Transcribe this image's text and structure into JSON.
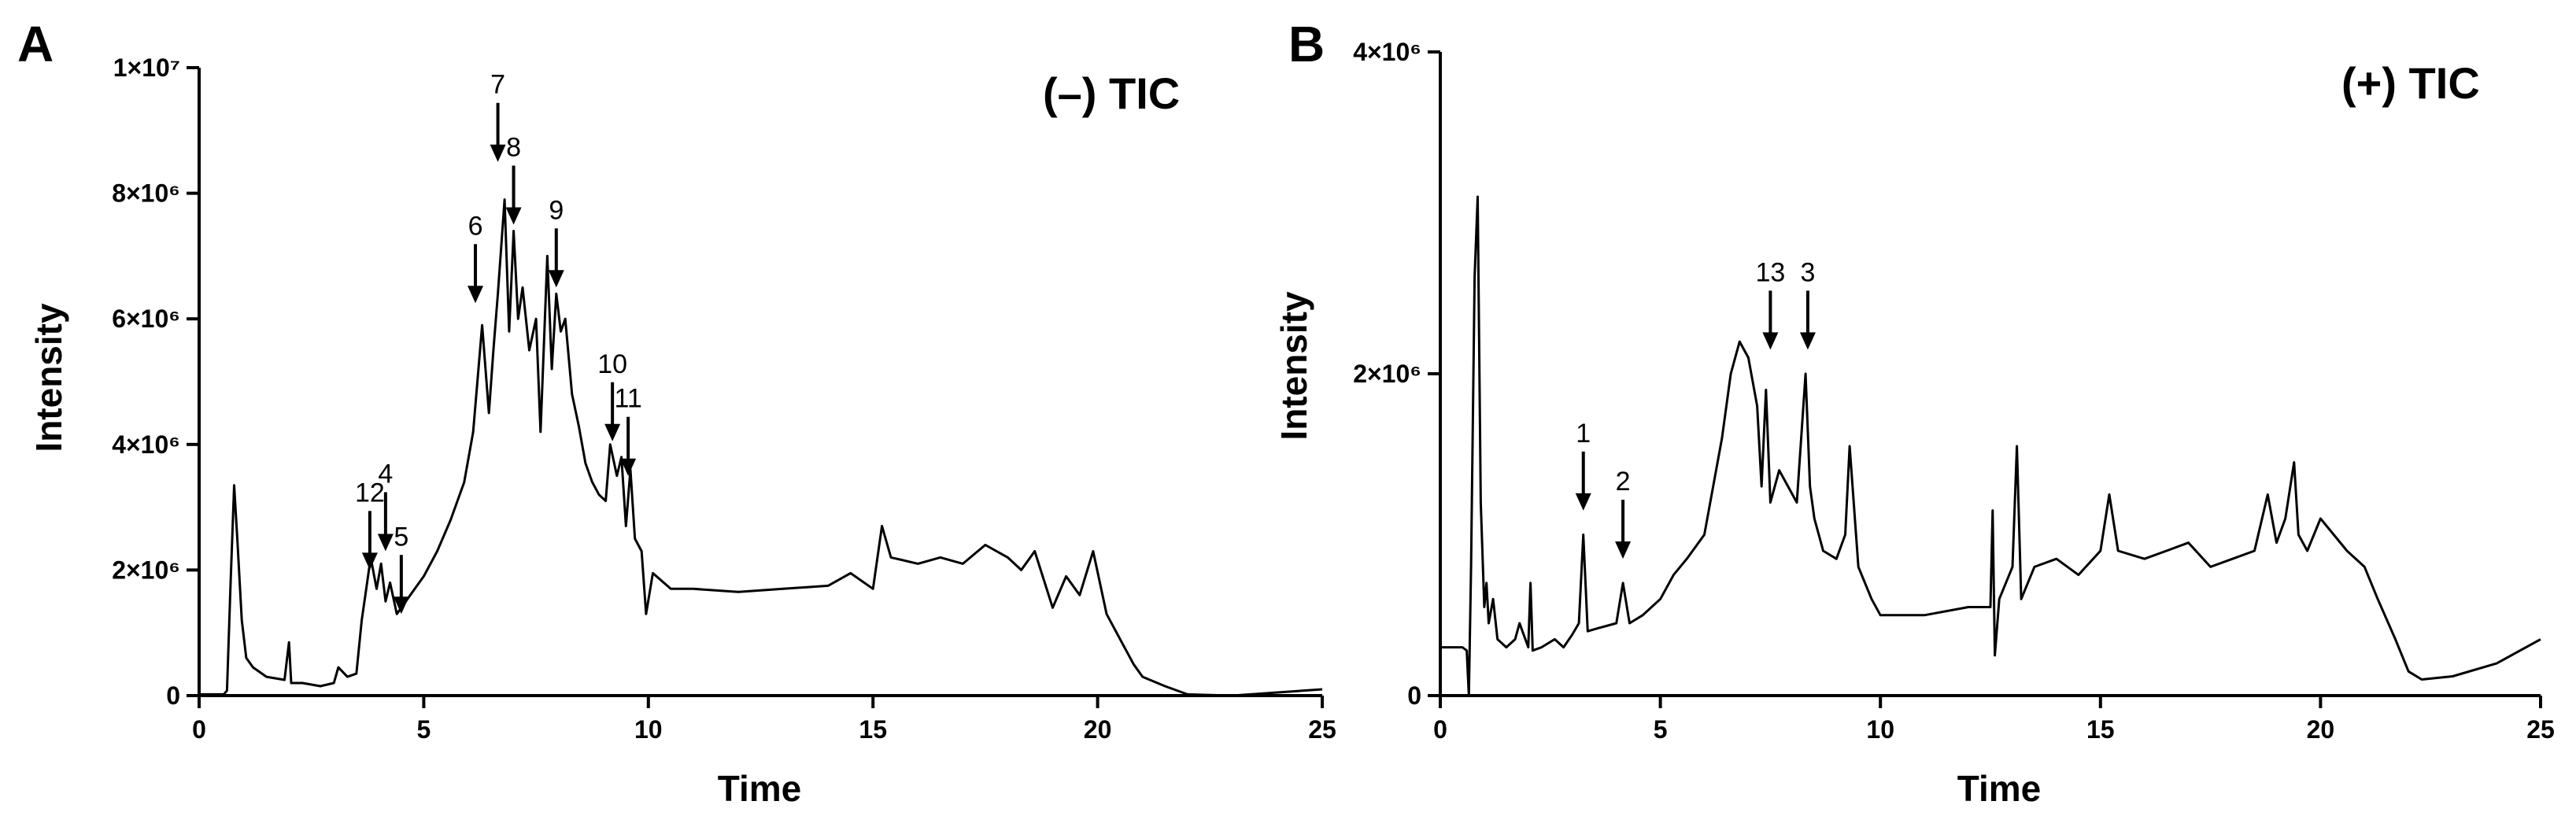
{
  "chart_data": [
    {
      "type": "line",
      "panel_label": "A",
      "title": "(–) TIC",
      "xlabel": "Time",
      "ylabel": "Intensity",
      "xlim": [
        0,
        25
      ],
      "ylim": [
        0,
        10000000
      ],
      "x_ticks": [
        0,
        5,
        10,
        15,
        20,
        25
      ],
      "x_tick_labels": [
        "0",
        "5",
        "10",
        "15",
        "20",
        "25"
      ],
      "y_ticks": [
        0,
        2000000,
        4000000,
        6000000,
        8000000,
        10000000
      ],
      "y_tick_labels": [
        "0",
        "2×10⁶",
        "4×10⁶",
        "6×10⁶",
        "8×10⁶",
        "1×10⁷"
      ],
      "grid": false,
      "line_color": "#000000",
      "series": [
        {
          "x": [
            0.0,
            0.55,
            0.62,
            0.7,
            0.78,
            0.85,
            0.95,
            1.05,
            1.2,
            1.5,
            1.9,
            2.0,
            2.05,
            2.3,
            2.7,
            3.0,
            3.1,
            3.3,
            3.5,
            3.62,
            3.7,
            3.82,
            3.95,
            4.05,
            4.15,
            4.25,
            4.4,
            4.5,
            4.6,
            4.8,
            5.0,
            5.3,
            5.6,
            5.9,
            6.1,
            6.3,
            6.45,
            6.55,
            6.65,
            6.8,
            6.9,
            7.0,
            7.1,
            7.2,
            7.35,
            7.5,
            7.6,
            7.75,
            7.85,
            7.95,
            8.05,
            8.15,
            8.3,
            8.45,
            8.6,
            8.75,
            8.9,
            9.05,
            9.15,
            9.3,
            9.4,
            9.5,
            9.6,
            9.7,
            9.85,
            9.95,
            10.1,
            10.5,
            11.0,
            12.0,
            13.0,
            14.0,
            14.5,
            15.0,
            15.2,
            15.4,
            16.0,
            16.5,
            17.0,
            17.5,
            18.0,
            18.3,
            18.6,
            19.0,
            19.3,
            19.6,
            19.9,
            20.2,
            20.5,
            20.8,
            21.0,
            21.5,
            22.0,
            23.0,
            24.0,
            25.0
          ],
          "y": [
            20000,
            20000,
            80000,
            1800000,
            3350000,
            2500000,
            1200000,
            600000,
            450000,
            300000,
            250000,
            850000,
            200000,
            200000,
            150000,
            200000,
            450000,
            300000,
            350000,
            1200000,
            1600000,
            2200000,
            1700000,
            2100000,
            1500000,
            1800000,
            1300000,
            1400000,
            1500000,
            1700000,
            1900000,
            2300000,
            2800000,
            3400000,
            4200000,
            5900000,
            4500000,
            5500000,
            6400000,
            7900000,
            5800000,
            7400000,
            6000000,
            6500000,
            5500000,
            6000000,
            4200000,
            7000000,
            5200000,
            6400000,
            5800000,
            6000000,
            4800000,
            4300000,
            3700000,
            3400000,
            3200000,
            3100000,
            4000000,
            3500000,
            3800000,
            2700000,
            3600000,
            2500000,
            2300000,
            1300000,
            1950000,
            1700000,
            1700000,
            1650000,
            1700000,
            1750000,
            1950000,
            1700000,
            2700000,
            2200000,
            2100000,
            2200000,
            2100000,
            2400000,
            2200000,
            2000000,
            2300000,
            1400000,
            1900000,
            1600000,
            2300000,
            1300000,
            900000,
            500000,
            300000,
            150000,
            20000,
            0,
            50000,
            100000
          ]
        }
      ],
      "annotations": [
        {
          "label": "12",
          "x": 3.8,
          "y": 2000000
        },
        {
          "label": "4",
          "x": 4.15,
          "y": 2300000
        },
        {
          "label": "5",
          "x": 4.5,
          "y": 1300000
        },
        {
          "label": "6",
          "x": 6.15,
          "y": 6250000
        },
        {
          "label": "7",
          "x": 6.65,
          "y": 8500000
        },
        {
          "label": "8",
          "x": 7.0,
          "y": 7500000
        },
        {
          "label": "9",
          "x": 7.95,
          "y": 6500000
        },
        {
          "label": "10",
          "x": 9.2,
          "y": 4050000
        },
        {
          "label": "11",
          "x": 9.55,
          "y": 3500000
        }
      ]
    },
    {
      "type": "line",
      "panel_label": "B",
      "title": "(+) TIC",
      "xlabel": "Time",
      "ylabel": "Intensity",
      "xlim": [
        0,
        25
      ],
      "ylim": [
        0,
        4000000
      ],
      "x_ticks": [
        0,
        5,
        10,
        15,
        20,
        25
      ],
      "x_tick_labels": [
        "0",
        "5",
        "10",
        "15",
        "20",
        "25"
      ],
      "y_ticks": [
        0,
        2000000,
        4000000
      ],
      "y_tick_labels": [
        "0",
        "2×10⁶",
        "4×10⁶"
      ],
      "grid": false,
      "line_color": "#000000",
      "series": [
        {
          "x": [
            0.0,
            0.5,
            0.6,
            0.65,
            0.7,
            0.78,
            0.85,
            0.92,
            1.0,
            1.05,
            1.1,
            1.2,
            1.3,
            1.5,
            1.7,
            1.8,
            2.0,
            2.05,
            2.1,
            2.3,
            2.6,
            2.8,
            3.0,
            3.15,
            3.25,
            3.35,
            3.6,
            4.0,
            4.15,
            4.3,
            4.6,
            5.0,
            5.3,
            5.6,
            6.0,
            6.2,
            6.4,
            6.6,
            6.8,
            7.0,
            7.2,
            7.3,
            7.4,
            7.5,
            7.7,
            7.9,
            8.1,
            8.3,
            8.4,
            8.5,
            8.7,
            9.0,
            9.2,
            9.3,
            9.5,
            9.8,
            10.0,
            11.0,
            12.0,
            12.5,
            12.55,
            12.6,
            12.7,
            13.0,
            13.1,
            13.2,
            13.5,
            14.0,
            14.5,
            15.0,
            15.2,
            15.4,
            16.0,
            16.5,
            17.0,
            17.5,
            18.0,
            18.5,
            18.8,
            19.0,
            19.2,
            19.4,
            19.5,
            19.7,
            20.0,
            20.3,
            20.6,
            21.0,
            21.3,
            21.7,
            22.0,
            22.3,
            23.0,
            24.0,
            25.0
          ],
          "y": [
            300000,
            300000,
            280000,
            0,
            800000,
            2600000,
            3100000,
            1200000,
            550000,
            700000,
            450000,
            600000,
            350000,
            300000,
            350000,
            450000,
            300000,
            700000,
            280000,
            300000,
            350000,
            300000,
            380000,
            450000,
            1000000,
            400000,
            420000,
            450000,
            700000,
            450000,
            500000,
            600000,
            750000,
            850000,
            1000000,
            1300000,
            1600000,
            2000000,
            2200000,
            2100000,
            1800000,
            1300000,
            1900000,
            1200000,
            1400000,
            1300000,
            1200000,
            2000000,
            1300000,
            1100000,
            900000,
            850000,
            1000000,
            1550000,
            800000,
            600000,
            500000,
            500000,
            550000,
            550000,
            1150000,
            250000,
            600000,
            800000,
            1550000,
            600000,
            800000,
            850000,
            750000,
            900000,
            1250000,
            900000,
            850000,
            900000,
            950000,
            800000,
            850000,
            900000,
            1250000,
            950000,
            1100000,
            1450000,
            1000000,
            900000,
            1100000,
            1000000,
            900000,
            800000,
            600000,
            350000,
            150000,
            100000,
            120000,
            200000,
            350000
          ]
        }
      ],
      "annotations": [
        {
          "label": "1",
          "x": 3.25,
          "y": 1150000
        },
        {
          "label": "2",
          "x": 4.15,
          "y": 850000
        },
        {
          "label": "13",
          "x": 7.5,
          "y": 2150000
        },
        {
          "label": "3",
          "x": 8.35,
          "y": 2150000
        }
      ]
    }
  ]
}
